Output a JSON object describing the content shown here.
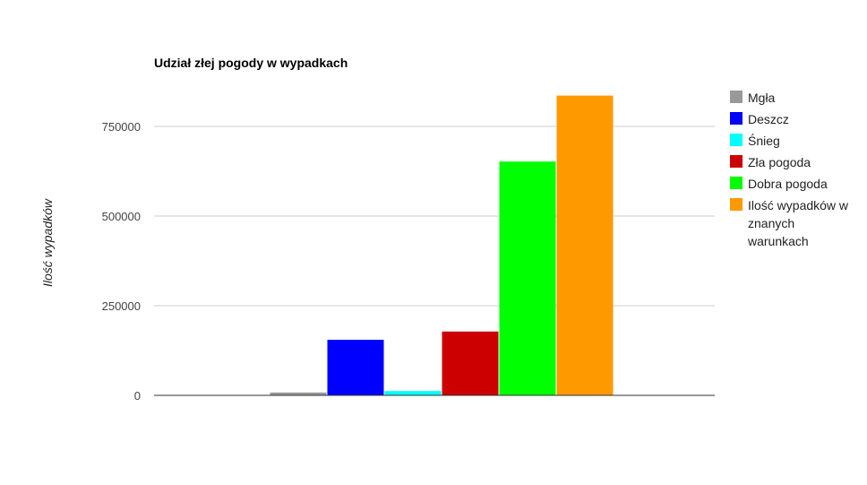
{
  "chart_data": {
    "type": "bar",
    "title": "Udział złej pogody w wypadkach",
    "ylabel": "Ilość wypadków",
    "xlabel": "",
    "ylim": [
      0,
      900000
    ],
    "yticks": [
      0,
      250000,
      500000,
      750000
    ],
    "categories": [
      ""
    ],
    "series": [
      {
        "name": "Mgła",
        "values": [
          8000
        ],
        "color": "#999999"
      },
      {
        "name": "Deszcz",
        "values": [
          155000
        ],
        "color": "#0000ff"
      },
      {
        "name": "Śnieg",
        "values": [
          12000
        ],
        "color": "#00ffff"
      },
      {
        "name": "Zła pogoda",
        "values": [
          178000
        ],
        "color": "#cc0000"
      },
      {
        "name": "Dobra pogoda",
        "values": [
          652000
        ],
        "color": "#00ff00"
      },
      {
        "name": "Ilość wypadków w znanych warunkach",
        "legend_lines": [
          "Ilość wypadków w",
          "znanych",
          "warunkach"
        ],
        "values": [
          836000
        ],
        "color": "#ff9900"
      }
    ],
    "grid": true,
    "legend_position": "right"
  }
}
